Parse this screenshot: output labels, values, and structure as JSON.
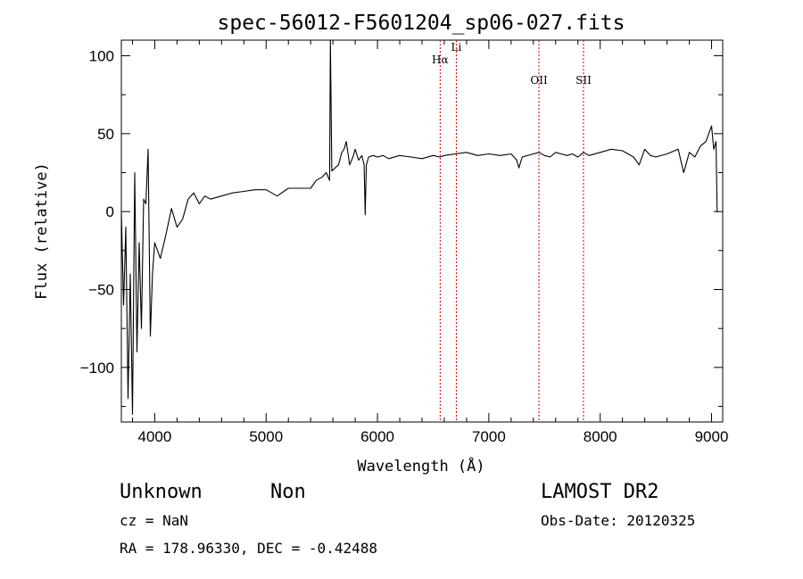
{
  "chart_data": {
    "type": "line",
    "title": "spec-56012-F5601204_sp06-027.fits",
    "xlabel": "Wavelength (Å)",
    "ylabel": "Flux (relative)",
    "xlim": [
      3700,
      9100
    ],
    "ylim": [
      -135,
      110
    ],
    "x_ticks": [
      "4000",
      "5000",
      "6000",
      "7000",
      "8000",
      "9000"
    ],
    "y_ticks": [
      "100",
      "50",
      "0",
      "−50",
      "−100"
    ],
    "grid": false,
    "series": [
      {
        "color": "#000000",
        "x": [
          3700,
          3720,
          3740,
          3760,
          3780,
          3800,
          3820,
          3840,
          3860,
          3880,
          3900,
          3920,
          3940,
          3960,
          3980,
          4000,
          4050,
          4100,
          4150,
          4200,
          4250,
          4300,
          4350,
          4400,
          4450,
          4500,
          4600,
          4700,
          4800,
          4900,
          5000,
          5100,
          5200,
          5300,
          5400,
          5450,
          5500,
          5540,
          5570,
          5577,
          5590,
          5620,
          5650,
          5680,
          5700,
          5720,
          5750,
          5780,
          5800,
          5830,
          5860,
          5880,
          5890,
          5900,
          5920,
          5960,
          6000,
          6050,
          6100,
          6200,
          6300,
          6400,
          6500,
          6563,
          6600,
          6700,
          6800,
          6900,
          7000,
          7100,
          7200,
          7250,
          7270,
          7300,
          7400,
          7450,
          7500,
          7550,
          7600,
          7650,
          7700,
          7750,
          7800,
          7850,
          7900,
          8000,
          8100,
          8200,
          8300,
          8350,
          8400,
          8450,
          8500,
          8600,
          8700,
          8750,
          8800,
          8850,
          8900,
          8950,
          9000,
          9020,
          9040,
          9050,
          9060
        ],
        "y": [
          0,
          -60,
          -10,
          -120,
          -40,
          -130,
          25,
          -90,
          -20,
          -75,
          8,
          5,
          40,
          -80,
          -40,
          -20,
          -30,
          -15,
          2,
          -10,
          -5,
          8,
          12,
          5,
          10,
          8,
          10,
          12,
          13,
          14,
          14,
          10,
          15,
          15,
          15,
          20,
          22,
          25,
          20,
          110,
          26,
          28,
          30,
          38,
          40,
          45,
          30,
          35,
          40,
          33,
          36,
          30,
          -2,
          30,
          35,
          36,
          35,
          36,
          34,
          36,
          35,
          34,
          36,
          35,
          36,
          37,
          38,
          36,
          37,
          36,
          37,
          33,
          28,
          35,
          37,
          38,
          36,
          35,
          38,
          37,
          36,
          37,
          35,
          38,
          36,
          38,
          40,
          39,
          35,
          30,
          40,
          36,
          35,
          37,
          40,
          25,
          38,
          35,
          42,
          45,
          55,
          40,
          45,
          0,
          0
        ]
      }
    ],
    "lines": [
      {
        "label": "Hα",
        "x": 6563,
        "label_y": 95
      },
      {
        "label": "Li",
        "x": 6708,
        "label_y": 103
      },
      {
        "label": "OII",
        "x": 7450,
        "label_y": 82
      },
      {
        "label": "SII",
        "x": 7850,
        "label_y": 82
      }
    ],
    "line_color": "#cc0000"
  },
  "footer": {
    "object_class": "Unknown",
    "object_subclass": "Non",
    "survey": "LAMOST DR2",
    "cz": "cz = NaN",
    "obs_date": "Obs-Date: 20120325",
    "coords": "RA = 178.96330, DEC =  -0.42488"
  }
}
